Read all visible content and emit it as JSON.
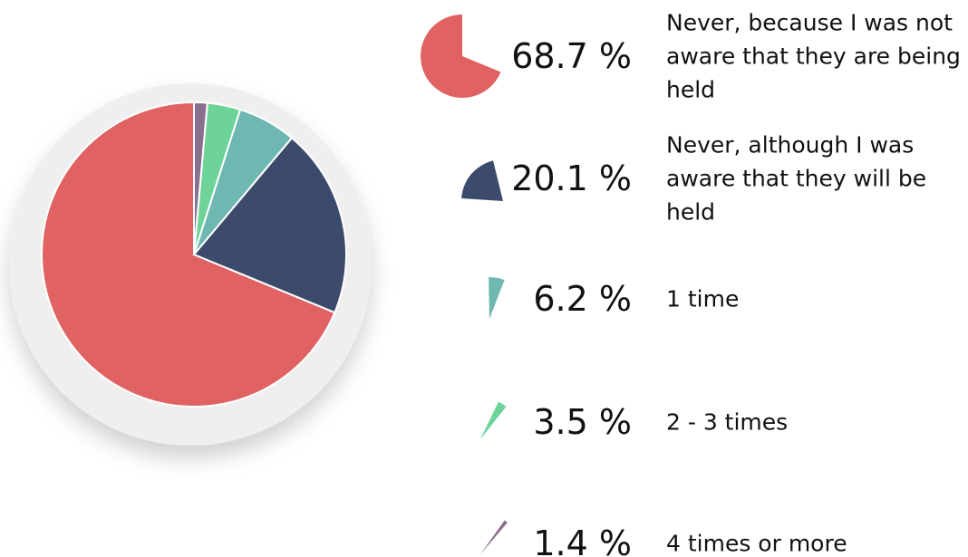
{
  "chart_data": {
    "type": "pie",
    "categories": [
      "Never, because I was not aware that they are being held",
      "Never, although I was aware that they will be held",
      "1 time",
      "2 - 3 times",
      "4 times or more"
    ],
    "values": [
      68.7,
      20.1,
      6.2,
      3.5,
      1.4
    ],
    "value_labels": [
      "68.7 %",
      "20.1 %",
      "6.2 %",
      "3.5 %",
      "1.4 %"
    ],
    "colors": [
      "#e06262",
      "#3c4a6b",
      "#6fb8b1",
      "#6dd399",
      "#8a6e8e"
    ]
  }
}
